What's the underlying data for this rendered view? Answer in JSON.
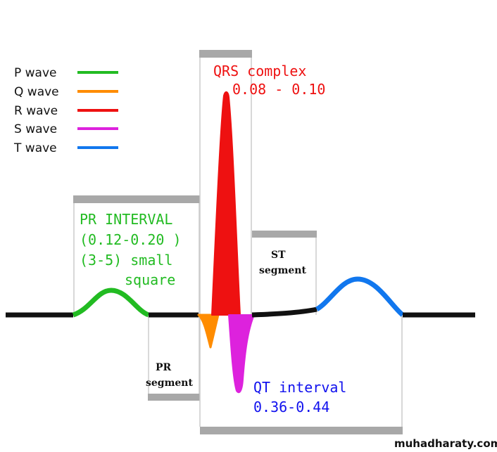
{
  "legend": [
    {
      "label": "P wave",
      "color": "#22bb22"
    },
    {
      "label": "Q wave",
      "color": "#ff8c00"
    },
    {
      "label": "R wave",
      "color": "#ee1111"
    },
    {
      "label": "S wave",
      "color": "#dd22dd"
    },
    {
      "label": "T wave",
      "color": "#1177ee"
    }
  ],
  "qrs": {
    "title": "QRS complex",
    "range": "0.08 - 0.10",
    "color": "#ee1111"
  },
  "pr_interval": {
    "line1": "PR INTERVAL",
    "line2": "(0.12-0.20 )",
    "line3": "(3-5) small",
    "line4": "square",
    "color": "#22bb22"
  },
  "st_segment": {
    "line1": "ST",
    "line2": "segment"
  },
  "pr_segment": {
    "line1": "PR",
    "line2": "segment"
  },
  "qt_interval": {
    "title": "QT interval",
    "range": "0.36-0.44",
    "color": "#1111ee"
  },
  "watermark": "muhadharaty.com",
  "colors": {
    "baseline": "#111111",
    "bracket": "#a8a8a8",
    "bracket_line": "#cccccc"
  }
}
